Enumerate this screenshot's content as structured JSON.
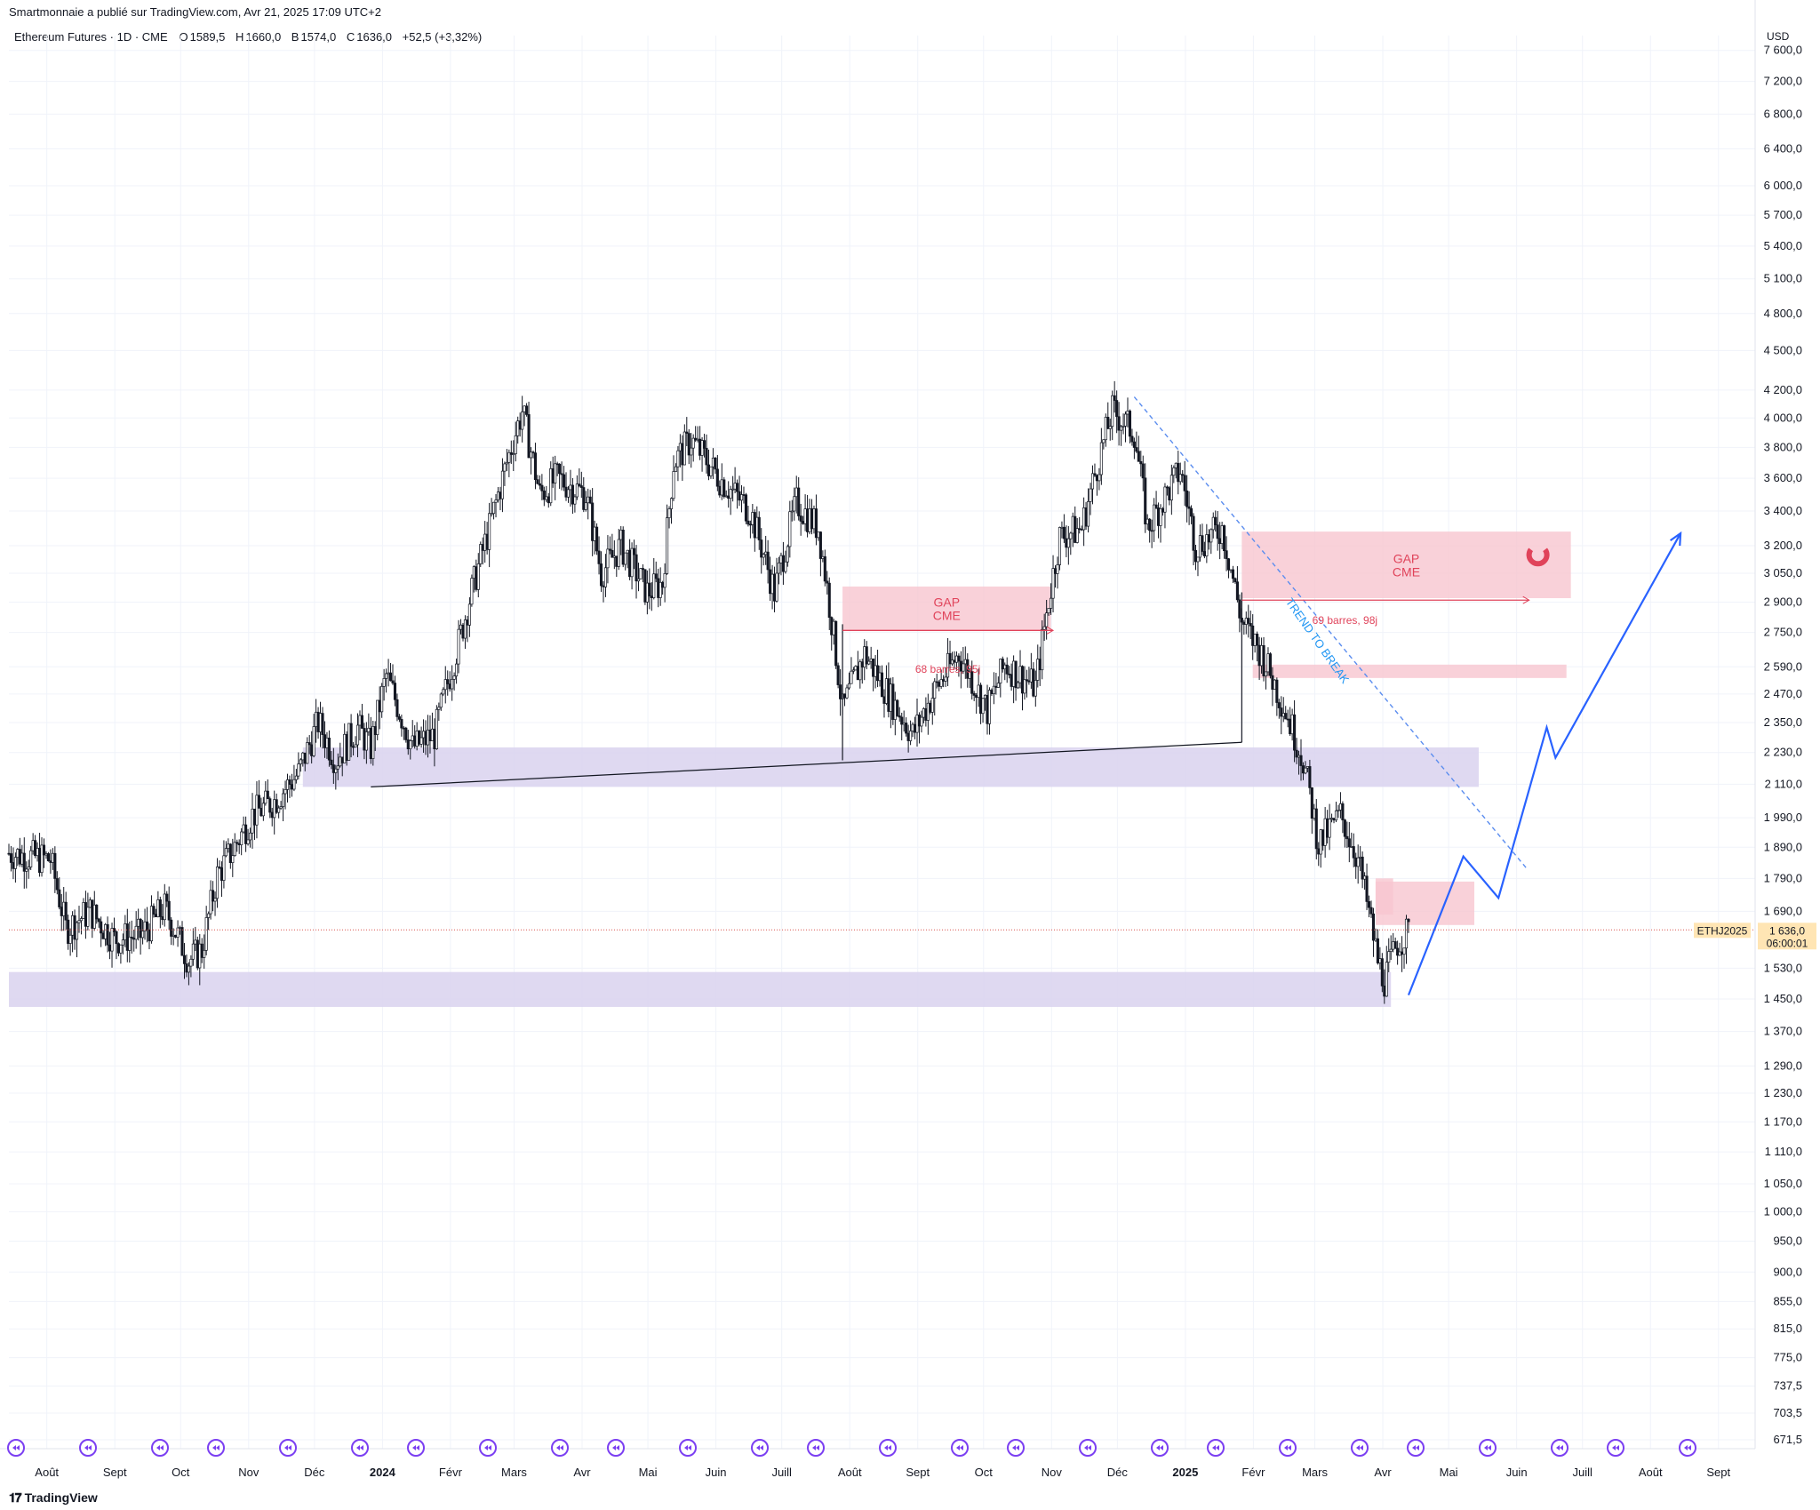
{
  "header": {
    "publisher": "Smartmonnaie a publié sur TradingView.com, Avr 21, 2025 17:09 UTC+2",
    "symbol_line": "Ethereum Futures · 1D · CME",
    "ohlc": [
      {
        "key": "O",
        "value": "1589,5"
      },
      {
        "key": "H",
        "value": "1660,0"
      },
      {
        "key": "B",
        "value": "1574,0"
      },
      {
        "key": "C",
        "value": "1636,0"
      }
    ],
    "change": "+52,5 (+3,32%)",
    "currency": "USD"
  },
  "brand": "TradingView",
  "colors": {
    "candle": "#131722",
    "zone_purple": "#d9d2ef",
    "zone_pink": "#f8c6cf",
    "gap_text": "#e0435a",
    "projection": "#2962ff",
    "trend_text": "#2196f3",
    "price_label_bg": "#ffe5b4",
    "grid": "#f0f3fa"
  },
  "chart_data": {
    "type": "candlestick",
    "y_scale": "log",
    "ylim": [
      671.5,
      7800
    ],
    "y_ticks": [
      "7 600,0",
      "7 200,0",
      "6 800,0",
      "6 400,0",
      "6 000,0",
      "5 700,0",
      "5 400,0",
      "5 100,0",
      "4 800,0",
      "4 500,0",
      "4 200,0",
      "4 000,0",
      "3 800,0",
      "3 600,0",
      "3 400,0",
      "3 200,0",
      "3 050,0",
      "2 900,0",
      "2 750,0",
      "2 590,0",
      "2 470,0",
      "2 350,0",
      "2 230,0",
      "2 110,0",
      "1 990,0",
      "1 890,0",
      "1 790,0",
      "1 690,0",
      "1 530,0",
      "1 450,0",
      "1 370,0",
      "1 290,0",
      "1 230,0",
      "1 170,0",
      "1 110,0",
      "1 050,0",
      "1 000,0",
      "950,0",
      "900,0",
      "855,0",
      "815,0",
      "775,0",
      "737,5",
      "703,5",
      "671,5"
    ],
    "x_ticks": [
      "Août",
      "Sept",
      "Oct",
      "Nov",
      "Déc",
      "2024",
      "Févr",
      "Mars",
      "Avr",
      "Mai",
      "Juin",
      "Juill",
      "Août",
      "Sept",
      "Oct",
      "Nov",
      "Déc",
      "2025",
      "Févr",
      "Mars",
      "Avr",
      "Mai",
      "Juin",
      "Juill",
      "Août",
      "Sept"
    ],
    "bold_x_ticks": [
      "2024",
      "2025"
    ],
    "close_path": [
      [
        "2023-07-22",
        1870
      ],
      [
        "2023-08-10",
        1850
      ],
      [
        "2023-08-17",
        1640
      ],
      [
        "2023-08-28",
        1690
      ],
      [
        "2023-09-08",
        1610
      ],
      [
        "2023-09-20",
        1620
      ],
      [
        "2023-10-01",
        1700
      ],
      [
        "2023-10-12",
        1550
      ],
      [
        "2023-10-18",
        1580
      ],
      [
        "2023-10-25",
        1800
      ],
      [
        "2023-11-01",
        1880
      ],
      [
        "2023-11-10",
        2000
      ],
      [
        "2023-11-20",
        2050
      ],
      [
        "2023-12-01",
        2150
      ],
      [
        "2023-12-10",
        2350
      ],
      [
        "2023-12-18",
        2200
      ],
      [
        "2023-12-28",
        2330
      ],
      [
        "2024-01-03",
        2250
      ],
      [
        "2024-01-10",
        2550
      ],
      [
        "2024-01-22",
        2250
      ],
      [
        "2024-02-01",
        2300
      ],
      [
        "2024-02-12",
        2700
      ],
      [
        "2024-02-26",
        3300
      ],
      [
        "2024-03-12",
        4050
      ],
      [
        "2024-03-20",
        3500
      ],
      [
        "2024-03-28",
        3600
      ],
      [
        "2024-04-10",
        3500
      ],
      [
        "2024-04-17",
        3050
      ],
      [
        "2024-04-26",
        3200
      ],
      [
        "2024-05-08",
        2950
      ],
      [
        "2024-05-15",
        3000
      ],
      [
        "2024-05-20",
        3700
      ],
      [
        "2024-05-28",
        3850
      ],
      [
        "2024-06-10",
        3600
      ],
      [
        "2024-06-24",
        3400
      ],
      [
        "2024-07-05",
        2950
      ],
      [
        "2024-07-15",
        3450
      ],
      [
        "2024-07-25",
        3300
      ],
      [
        "2024-08-05",
        2400
      ],
      [
        "2024-08-15",
        2650
      ],
      [
        "2024-08-27",
        2450
      ],
      [
        "2024-09-06",
        2300
      ],
      [
        "2024-09-17",
        2500
      ],
      [
        "2024-09-27",
        2650
      ],
      [
        "2024-10-10",
        2400
      ],
      [
        "2024-10-18",
        2600
      ],
      [
        "2024-11-01",
        2500
      ],
      [
        "2024-11-12",
        3250
      ],
      [
        "2024-11-22",
        3300
      ],
      [
        "2024-12-06",
        4050
      ],
      [
        "2024-12-16",
        3900
      ],
      [
        "2024-12-22",
        3300
      ],
      [
        "2025-01-06",
        3650
      ],
      [
        "2025-01-13",
        3200
      ],
      [
        "2025-01-25",
        3300
      ],
      [
        "2025-02-03",
        2800
      ],
      [
        "2025-02-12",
        2650
      ],
      [
        "2025-02-25",
        2350
      ],
      [
        "2025-03-03",
        2200
      ],
      [
        "2025-03-10",
        1900
      ],
      [
        "2025-03-20",
        2000
      ],
      [
        "2025-03-28",
        1850
      ],
      [
        "2025-04-06",
        1550
      ],
      [
        "2025-04-09",
        1500
      ],
      [
        "2025-04-15",
        1600
      ],
      [
        "2025-04-21",
        1636
      ]
    ],
    "zones": [
      {
        "kind": "support",
        "x": [
          "2023-12-03",
          "2025-05-22"
        ],
        "y": [
          2100,
          2250
        ]
      },
      {
        "kind": "support",
        "x": [
          "2023-07-22",
          "2025-04-12"
        ],
        "y": [
          1430,
          1520
        ]
      },
      {
        "kind": "gap",
        "x": [
          "2024-08-05",
          "2024-11-08"
        ],
        "y": [
          2760,
          2980
        ],
        "label": "GAP\nCME"
      },
      {
        "kind": "gap",
        "x": [
          "2025-02-03",
          "2025-07-03"
        ],
        "y": [
          2920,
          3280
        ],
        "label": "GAP\nCME"
      },
      {
        "kind": "gap",
        "x": [
          "2025-02-08",
          "2025-07-01"
        ],
        "y": [
          2540,
          2600
        ]
      },
      {
        "kind": "gap",
        "x": [
          "2025-04-05",
          "2025-05-20"
        ],
        "y": [
          1650,
          1780
        ]
      },
      {
        "kind": "gap",
        "x": [
          "2025-04-05",
          "2025-04-13"
        ],
        "y": [
          1680,
          1790
        ]
      }
    ],
    "annotations": [
      {
        "text": "68 barres, 95j"
      },
      {
        "text": "69 barres, 98j"
      },
      {
        "text": "TREND TO BREAK"
      }
    ],
    "trendline": {
      "x": [
        "2024-01-03",
        "2025-02-03"
      ],
      "y": [
        2100,
        2270
      ]
    },
    "downtrend": {
      "x": [
        "2024-12-16",
        "2025-06-13"
      ],
      "y": [
        4150,
        1820
      ]
    },
    "projection": [
      [
        "2025-04-20",
        1460
      ],
      [
        "2025-05-15",
        1860
      ],
      [
        "2025-05-31",
        1730
      ],
      [
        "2025-06-22",
        2330
      ],
      [
        "2025-06-26",
        2210
      ],
      [
        "2025-08-22",
        3270
      ]
    ],
    "last_price": {
      "symbol": "ETHJ2025",
      "value": "1 636,0",
      "countdown": "06:00:01"
    }
  }
}
